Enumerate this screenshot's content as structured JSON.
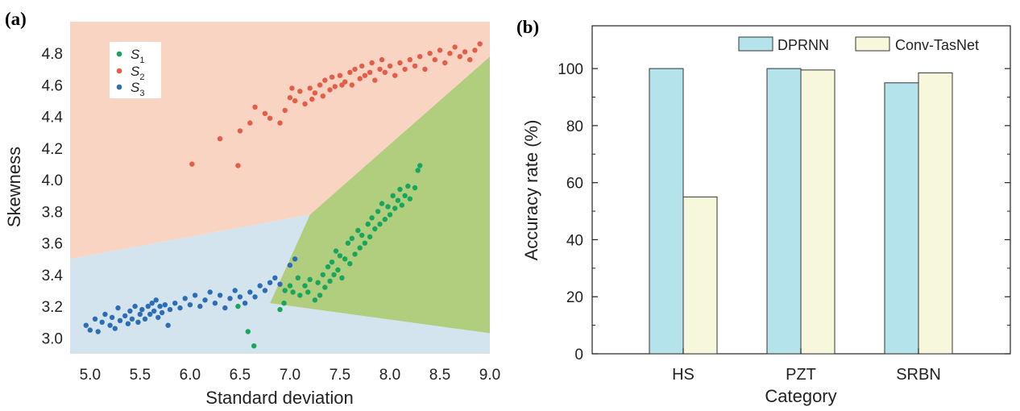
{
  "chart_data": [
    {
      "panel_label": "(a)",
      "type": "scatter",
      "xlabel": "Standard deviation",
      "ylabel": "Skewness",
      "xlim": [
        4.8,
        9.0
      ],
      "ylim": [
        2.9,
        5.0
      ],
      "x_ticks": [
        "5.0",
        "5.5",
        "6.0",
        "6.5",
        "7.0",
        "7.5",
        "8.0",
        "8.5",
        "9.0"
      ],
      "y_ticks": [
        "3.0",
        "3.2",
        "3.4",
        "3.6",
        "3.8",
        "4.0",
        "4.2",
        "4.4",
        "4.6",
        "4.8"
      ],
      "legend_position": "top-left",
      "regions": [
        {
          "name": "S2",
          "color": "#f9d4c2",
          "polygon": [
            [
              4.8,
              5.0
            ],
            [
              9.0,
              5.0
            ],
            [
              9.0,
              4.78
            ],
            [
              7.2,
              3.78
            ],
            [
              4.8,
              3.5
            ]
          ]
        },
        {
          "name": "S3",
          "color": "#d3e4ef",
          "polygon": [
            [
              4.8,
              3.5
            ],
            [
              7.2,
              3.78
            ],
            [
              6.8,
              3.22
            ],
            [
              9.0,
              3.03
            ],
            [
              9.0,
              2.9
            ],
            [
              4.8,
              2.9
            ]
          ]
        },
        {
          "name": "S1",
          "color": "#b1cd7e",
          "polygon": [
            [
              7.2,
              3.78
            ],
            [
              9.0,
              4.78
            ],
            [
              9.0,
              3.03
            ],
            [
              6.8,
              3.22
            ]
          ]
        }
      ],
      "series": [
        {
          "name": "S1",
          "label_main": "S",
          "label_sub": "1",
          "color": "#17a65c",
          "points": [
            [
              6.48,
              3.2
            ],
            [
              6.58,
              3.04
            ],
            [
              6.64,
              2.95
            ],
            [
              6.9,
              3.18
            ],
            [
              6.94,
              3.22
            ],
            [
              6.95,
              3.3
            ],
            [
              7.0,
              3.33
            ],
            [
              7.03,
              3.29
            ],
            [
              7.08,
              3.38
            ],
            [
              7.1,
              3.27
            ],
            [
              7.15,
              3.33
            ],
            [
              7.18,
              3.29
            ],
            [
              7.2,
              3.37
            ],
            [
              7.25,
              3.24
            ],
            [
              7.28,
              3.35
            ],
            [
              7.3,
              3.27
            ],
            [
              7.33,
              3.4
            ],
            [
              7.35,
              3.32
            ],
            [
              7.38,
              3.45
            ],
            [
              7.4,
              3.36
            ],
            [
              7.42,
              3.48
            ],
            [
              7.44,
              3.4
            ],
            [
              7.46,
              3.55
            ],
            [
              7.48,
              3.43
            ],
            [
              7.5,
              3.52
            ],
            [
              7.52,
              3.38
            ],
            [
              7.55,
              3.5
            ],
            [
              7.58,
              3.6
            ],
            [
              7.6,
              3.47
            ],
            [
              7.62,
              3.63
            ],
            [
              7.65,
              3.53
            ],
            [
              7.68,
              3.68
            ],
            [
              7.7,
              3.57
            ],
            [
              7.72,
              3.65
            ],
            [
              7.75,
              3.6
            ],
            [
              7.78,
              3.72
            ],
            [
              7.8,
              3.64
            ],
            [
              7.82,
              3.76
            ],
            [
              7.85,
              3.69
            ],
            [
              7.88,
              3.8
            ],
            [
              7.9,
              3.72
            ],
            [
              7.92,
              3.85
            ],
            [
              7.95,
              3.75
            ],
            [
              7.98,
              3.83
            ],
            [
              8.0,
              3.78
            ],
            [
              8.03,
              3.9
            ],
            [
              8.05,
              3.82
            ],
            [
              8.08,
              3.87
            ],
            [
              8.1,
              3.94
            ],
            [
              8.12,
              3.84
            ],
            [
              8.15,
              3.9
            ],
            [
              8.18,
              3.96
            ],
            [
              8.2,
              3.88
            ],
            [
              8.25,
              3.95
            ],
            [
              8.28,
              4.06
            ],
            [
              8.3,
              4.09
            ]
          ]
        },
        {
          "name": "S2",
          "label_main": "S",
          "label_sub": "2",
          "color": "#e35d48",
          "points": [
            [
              6.02,
              4.1
            ],
            [
              6.3,
              4.26
            ],
            [
              6.48,
              4.09
            ],
            [
              6.5,
              4.31
            ],
            [
              6.6,
              4.36
            ],
            [
              6.65,
              4.46
            ],
            [
              6.75,
              4.42
            ],
            [
              6.8,
              4.39
            ],
            [
              6.9,
              4.36
            ],
            [
              6.95,
              4.44
            ],
            [
              7.0,
              4.52
            ],
            [
              7.02,
              4.58
            ],
            [
              7.05,
              4.5
            ],
            [
              7.1,
              4.56
            ],
            [
              7.15,
              4.48
            ],
            [
              7.2,
              4.58
            ],
            [
              7.22,
              4.51
            ],
            [
              7.25,
              4.55
            ],
            [
              7.3,
              4.6
            ],
            [
              7.33,
              4.53
            ],
            [
              7.35,
              4.63
            ],
            [
              7.4,
              4.57
            ],
            [
              7.42,
              4.65
            ],
            [
              7.45,
              4.59
            ],
            [
              7.5,
              4.66
            ],
            [
              7.52,
              4.6
            ],
            [
              7.55,
              4.62
            ],
            [
              7.6,
              4.68
            ],
            [
              7.62,
              4.6
            ],
            [
              7.65,
              4.7
            ],
            [
              7.7,
              4.64
            ],
            [
              7.72,
              4.72
            ],
            [
              7.75,
              4.66
            ],
            [
              7.8,
              4.68
            ],
            [
              7.82,
              4.74
            ],
            [
              7.85,
              4.63
            ],
            [
              7.9,
              4.7
            ],
            [
              7.92,
              4.76
            ],
            [
              7.95,
              4.68
            ],
            [
              8.0,
              4.72
            ],
            [
              8.05,
              4.66
            ],
            [
              8.1,
              4.74
            ],
            [
              8.15,
              4.7
            ],
            [
              8.2,
              4.76
            ],
            [
              8.25,
              4.72
            ],
            [
              8.3,
              4.78
            ],
            [
              8.35,
              4.7
            ],
            [
              8.4,
              4.8
            ],
            [
              8.45,
              4.76
            ],
            [
              8.5,
              4.82
            ],
            [
              8.55,
              4.74
            ],
            [
              8.6,
              4.8
            ],
            [
              8.65,
              4.84
            ],
            [
              8.7,
              4.78
            ],
            [
              8.75,
              4.81
            ],
            [
              8.8,
              4.76
            ],
            [
              8.85,
              4.82
            ],
            [
              8.9,
              4.86
            ]
          ]
        },
        {
          "name": "S3",
          "label_main": "S",
          "label_sub": "3",
          "color": "#2d6db5",
          "points": [
            [
              4.96,
              3.08
            ],
            [
              5.0,
              3.05
            ],
            [
              5.05,
              3.12
            ],
            [
              5.08,
              3.04
            ],
            [
              5.12,
              3.1
            ],
            [
              5.15,
              3.15
            ],
            [
              5.2,
              3.08
            ],
            [
              5.22,
              3.13
            ],
            [
              5.25,
              3.06
            ],
            [
              5.28,
              3.19
            ],
            [
              5.3,
              3.11
            ],
            [
              5.35,
              3.14
            ],
            [
              5.38,
              3.09
            ],
            [
              5.4,
              3.17
            ],
            [
              5.42,
              3.12
            ],
            [
              5.45,
              3.2
            ],
            [
              5.48,
              3.1
            ],
            [
              5.5,
              3.15
            ],
            [
              5.52,
              3.18
            ],
            [
              5.55,
              3.12
            ],
            [
              5.58,
              3.2
            ],
            [
              5.6,
              3.15
            ],
            [
              5.62,
              3.22
            ],
            [
              5.64,
              3.17
            ],
            [
              5.66,
              3.24
            ],
            [
              5.68,
              3.13
            ],
            [
              5.7,
              3.2
            ],
            [
              5.72,
              3.16
            ],
            [
              5.75,
              3.21
            ],
            [
              5.78,
              3.08
            ],
            [
              5.8,
              3.18
            ],
            [
              5.85,
              3.22
            ],
            [
              5.9,
              3.19
            ],
            [
              5.95,
              3.25
            ],
            [
              6.0,
              3.21
            ],
            [
              6.05,
              3.27
            ],
            [
              6.1,
              3.2
            ],
            [
              6.15,
              3.24
            ],
            [
              6.2,
              3.29
            ],
            [
              6.25,
              3.22
            ],
            [
              6.3,
              3.27
            ],
            [
              6.35,
              3.19
            ],
            [
              6.4,
              3.25
            ],
            [
              6.45,
              3.3
            ],
            [
              6.5,
              3.26
            ],
            [
              6.55,
              3.22
            ],
            [
              6.6,
              3.29
            ],
            [
              6.65,
              3.26
            ],
            [
              6.7,
              3.33
            ],
            [
              6.75,
              3.3
            ],
            [
              6.8,
              3.35
            ],
            [
              6.85,
              3.38
            ],
            [
              6.9,
              3.34
            ],
            [
              7.0,
              3.46
            ],
            [
              7.05,
              3.5
            ]
          ]
        }
      ]
    },
    {
      "panel_label": "(b)",
      "type": "bar",
      "xlabel": "Category",
      "ylabel": "Accuracy rate (%)",
      "ylim": [
        0,
        115
      ],
      "y_ticks": [
        "0",
        "20",
        "40",
        "60",
        "80",
        "100"
      ],
      "categories": [
        "HS",
        "PZT",
        "SRBN"
      ],
      "legend_position": "top-right",
      "series": [
        {
          "name": "DPRNN",
          "color": "#b5e3ec",
          "values": [
            100,
            100,
            95
          ]
        },
        {
          "name": "Conv-TasNet",
          "color": "#f7f7dc",
          "values": [
            55,
            99.5,
            98.5
          ]
        }
      ]
    }
  ]
}
